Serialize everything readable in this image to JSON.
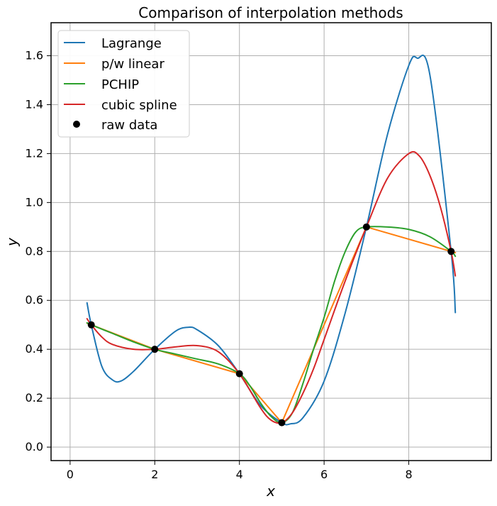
{
  "chart_data": {
    "type": "line",
    "title": "Comparison of interpolation methods",
    "xlabel": "x",
    "ylabel": "y",
    "xlim": [
      -0.45,
      9.95
    ],
    "ylim": [
      -0.055,
      1.735
    ],
    "xticks": [
      0,
      2,
      4,
      6,
      8
    ],
    "yticks": [
      0.0,
      0.2,
      0.4,
      0.6,
      0.8,
      1.0,
      1.2,
      1.4,
      1.6
    ],
    "xtick_labels": [
      "0",
      "2",
      "4",
      "6",
      "8"
    ],
    "ytick_labels": [
      "0.0",
      "0.2",
      "0.4",
      "0.6",
      "0.8",
      "1.0",
      "1.2",
      "1.4",
      "1.6"
    ],
    "grid": true,
    "legend_position": "top-left",
    "raw_data": {
      "name": "raw data",
      "x": [
        0.5,
        2,
        4,
        5,
        7,
        9
      ],
      "y": [
        0.5,
        0.4,
        0.3,
        0.1,
        0.9,
        0.8
      ]
    },
    "series": [
      {
        "name": "Lagrange",
        "color": "#1f77b4",
        "x": [
          0.4,
          0.5,
          0.75,
          1.0,
          1.2,
          1.5,
          2.0,
          2.5,
          2.8,
          3.0,
          3.5,
          4.0,
          4.5,
          5.0,
          5.2,
          5.5,
          6.0,
          6.5,
          7.0,
          7.5,
          8.0,
          8.2,
          8.5,
          9.0,
          9.1
        ],
        "y": [
          0.59,
          0.5,
          0.33,
          0.275,
          0.27,
          0.31,
          0.4,
          0.475,
          0.49,
          0.48,
          0.415,
          0.3,
          0.17,
          0.1,
          0.095,
          0.12,
          0.27,
          0.55,
          0.9,
          1.28,
          1.56,
          1.59,
          1.52,
          0.8,
          0.55
        ]
      },
      {
        "name": "p/w linear",
        "color": "#ff7f0e",
        "x": [
          0.4,
          0.5,
          2,
          4,
          5,
          7,
          9,
          9.1
        ],
        "y": [
          0.507,
          0.5,
          0.4,
          0.3,
          0.1,
          0.9,
          0.8,
          0.795
        ]
      },
      {
        "name": "PCHIP",
        "color": "#2ca02c",
        "x": [
          0.4,
          0.5,
          1.0,
          1.5,
          2.0,
          2.5,
          3.0,
          3.5,
          4.0,
          4.25,
          4.5,
          4.75,
          5.0,
          5.25,
          5.5,
          5.75,
          6.0,
          6.25,
          6.5,
          6.75,
          7.0,
          7.5,
          8.0,
          8.5,
          9.0,
          9.1
        ],
        "y": [
          0.508,
          0.5,
          0.465,
          0.43,
          0.4,
          0.38,
          0.36,
          0.34,
          0.3,
          0.25,
          0.18,
          0.125,
          0.1,
          0.14,
          0.26,
          0.4,
          0.53,
          0.68,
          0.8,
          0.88,
          0.9,
          0.9,
          0.89,
          0.86,
          0.8,
          0.78
        ]
      },
      {
        "name": "cubic spline",
        "color": "#d62728",
        "x": [
          0.4,
          0.5,
          0.75,
          1.0,
          1.5,
          2.0,
          2.5,
          3.0,
          3.5,
          4.0,
          4.5,
          4.75,
          5.0,
          5.25,
          5.5,
          5.75,
          6.0,
          6.5,
          7.0,
          7.5,
          8.0,
          8.25,
          8.5,
          8.75,
          9.0,
          9.1
        ],
        "y": [
          0.525,
          0.5,
          0.45,
          0.42,
          0.4,
          0.4,
          0.41,
          0.415,
          0.39,
          0.3,
          0.16,
          0.11,
          0.1,
          0.14,
          0.22,
          0.32,
          0.44,
          0.68,
          0.9,
          1.1,
          1.2,
          1.19,
          1.11,
          0.98,
          0.8,
          0.7
        ]
      }
    ],
    "legend_entries": [
      "Lagrange",
      "p/w linear",
      "PCHIP",
      "cubic spline",
      "raw data"
    ]
  }
}
